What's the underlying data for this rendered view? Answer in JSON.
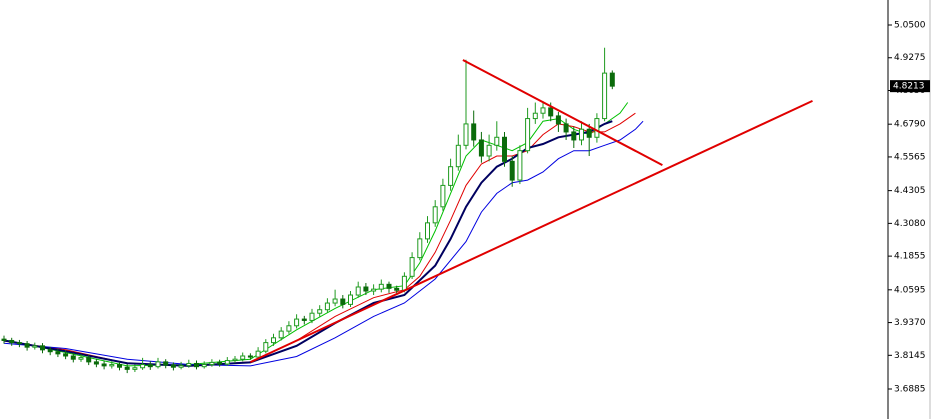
{
  "chart_data": {
    "type": "candlestick",
    "up_color": "#1f9a1f",
    "down_color": "#0b6b0b",
    "open": [
      3.875,
      3.87,
      3.862,
      3.858,
      3.845,
      3.85,
      3.835,
      3.828,
      3.82,
      3.812,
      3.8,
      3.806,
      3.79,
      3.782,
      3.775,
      3.78,
      3.77,
      3.762,
      3.768,
      3.78,
      3.772,
      3.79,
      3.778,
      3.77,
      3.776,
      3.784,
      3.772,
      3.78,
      3.788,
      3.782,
      3.795,
      3.8,
      3.812,
      3.808,
      3.83,
      3.862,
      3.88,
      3.905,
      3.925,
      3.95,
      3.945,
      3.972,
      3.985,
      4.01,
      4.025,
      4.005,
      4.04,
      4.07,
      4.055,
      4.062,
      4.08,
      4.065,
      4.058,
      4.11,
      4.18,
      4.25,
      4.31,
      4.37,
      4.45,
      4.52,
      4.6,
      4.68,
      4.62,
      4.56,
      4.6,
      4.63,
      4.54,
      4.47,
      4.58,
      4.7,
      4.72,
      4.74,
      4.71,
      4.68,
      4.65,
      4.62,
      4.66,
      4.63,
      4.7,
      4.87
    ],
    "high": [
      3.888,
      3.88,
      3.872,
      3.868,
      3.862,
      3.86,
      3.846,
      3.84,
      3.832,
      3.824,
      3.818,
      3.815,
      3.8,
      3.795,
      3.792,
      3.79,
      3.782,
      3.78,
      3.805,
      3.792,
      3.805,
      3.8,
      3.788,
      3.79,
      3.798,
      3.795,
      3.792,
      3.8,
      3.798,
      3.808,
      3.812,
      3.825,
      3.822,
      3.845,
      3.875,
      3.895,
      3.92,
      3.942,
      3.968,
      3.962,
      3.988,
      4.002,
      4.028,
      4.06,
      4.04,
      4.055,
      4.09,
      4.085,
      4.08,
      4.098,
      4.09,
      4.075,
      4.125,
      4.2,
      4.275,
      4.335,
      4.395,
      4.475,
      4.55,
      4.64,
      4.92,
      4.73,
      4.65,
      4.64,
      4.69,
      4.65,
      4.56,
      4.6,
      4.74,
      4.76,
      4.765,
      4.76,
      4.725,
      4.7,
      4.67,
      4.69,
      4.68,
      4.72,
      4.965,
      4.88
    ],
    "low": [
      3.858,
      3.85,
      3.845,
      3.832,
      3.836,
      3.822,
      3.815,
      3.808,
      3.8,
      3.788,
      3.79,
      3.778,
      3.77,
      3.762,
      3.765,
      3.758,
      3.748,
      3.752,
      3.76,
      3.76,
      3.765,
      3.766,
      3.758,
      3.762,
      3.768,
      3.762,
      3.765,
      3.772,
      3.772,
      3.775,
      3.786,
      3.792,
      3.798,
      3.8,
      3.822,
      3.85,
      3.87,
      3.895,
      3.915,
      3.93,
      3.935,
      3.96,
      3.975,
      3.998,
      3.99,
      3.995,
      4.03,
      4.04,
      4.04,
      4.05,
      4.048,
      4.04,
      4.05,
      4.1,
      4.17,
      4.235,
      4.295,
      4.355,
      4.43,
      4.505,
      4.585,
      4.595,
      4.535,
      4.54,
      4.58,
      4.52,
      4.445,
      4.455,
      4.57,
      4.68,
      4.7,
      4.69,
      4.65,
      4.62,
      4.59,
      4.6,
      4.56,
      4.61,
      4.69,
      4.81
    ],
    "close": [
      3.87,
      3.862,
      3.858,
      3.845,
      3.85,
      3.835,
      3.828,
      3.82,
      3.812,
      3.8,
      3.806,
      3.79,
      3.782,
      3.775,
      3.78,
      3.77,
      3.762,
      3.768,
      3.78,
      3.772,
      3.79,
      3.778,
      3.77,
      3.776,
      3.784,
      3.772,
      3.78,
      3.788,
      3.782,
      3.795,
      3.8,
      3.812,
      3.808,
      3.83,
      3.862,
      3.88,
      3.905,
      3.925,
      3.95,
      3.945,
      3.972,
      3.985,
      4.01,
      4.025,
      4.005,
      4.04,
      4.07,
      4.055,
      4.062,
      4.08,
      4.065,
      4.058,
      4.11,
      4.18,
      4.25,
      4.31,
      4.37,
      4.45,
      4.52,
      4.6,
      4.68,
      4.62,
      4.56,
      4.6,
      4.63,
      4.54,
      4.47,
      4.58,
      4.7,
      4.72,
      4.74,
      4.71,
      4.68,
      4.65,
      4.62,
      4.66,
      4.63,
      4.7,
      4.87,
      4.8213
    ],
    "overlays": [
      {
        "color": "#00c000",
        "x": [
          0,
          8,
          16,
          24,
          32,
          38,
          43,
          48,
          52,
          54,
          56,
          58,
          60,
          62,
          64,
          66,
          68,
          70,
          72,
          74,
          76,
          78,
          80,
          81
        ],
        "values": [
          3.872,
          3.825,
          3.775,
          3.78,
          3.8,
          3.91,
          3.99,
          4.06,
          4.075,
          4.16,
          4.28,
          4.42,
          4.56,
          4.62,
          4.6,
          4.58,
          4.61,
          4.69,
          4.7,
          4.66,
          4.64,
          4.68,
          4.72,
          4.76
        ]
      },
      {
        "color": "#e00000",
        "x": [
          0,
          8,
          16,
          24,
          32,
          38,
          43,
          48,
          52,
          54,
          56,
          58,
          60,
          62,
          64,
          66,
          68,
          70,
          72,
          74,
          76,
          78,
          80,
          82
        ],
        "values": [
          3.868,
          3.835,
          3.785,
          3.775,
          3.79,
          3.87,
          3.96,
          4.03,
          4.06,
          4.11,
          4.2,
          4.32,
          4.45,
          4.53,
          4.56,
          4.56,
          4.58,
          4.64,
          4.68,
          4.67,
          4.65,
          4.65,
          4.68,
          4.72
        ]
      },
      {
        "color": "#0000e0",
        "x": [
          0,
          8,
          16,
          24,
          32,
          38,
          43,
          48,
          52,
          56,
          60,
          62,
          64,
          66,
          68,
          70,
          72,
          74,
          76,
          78,
          80,
          82,
          83
        ],
        "values": [
          3.86,
          3.84,
          3.8,
          3.78,
          3.775,
          3.81,
          3.88,
          3.96,
          4.01,
          4.1,
          4.24,
          4.35,
          4.42,
          4.46,
          4.47,
          4.5,
          4.55,
          4.58,
          4.58,
          4.6,
          4.62,
          4.66,
          4.69
        ]
      },
      {
        "color": "#000060",
        "width": 2,
        "x": [
          0,
          8,
          16,
          24,
          32,
          38,
          43,
          48,
          52,
          56,
          58,
          60,
          62,
          64,
          66,
          68,
          70,
          72,
          74,
          76,
          78,
          79
        ],
        "values": [
          3.87,
          3.83,
          3.785,
          3.775,
          3.788,
          3.85,
          3.935,
          4.01,
          4.04,
          4.15,
          4.25,
          4.37,
          4.46,
          4.52,
          4.55,
          4.59,
          4.605,
          4.63,
          4.64,
          4.65,
          4.68,
          4.69
        ]
      }
    ],
    "trendlines": [
      {
        "color": "#e00000",
        "x": [
          59.6,
          85.5
        ],
        "values": [
          4.919,
          4.526
        ]
      },
      {
        "color": "#e00000",
        "x": [
          32,
          105
        ],
        "values": [
          3.789,
          4.766
        ]
      }
    ],
    "ylim": [
      3.5763,
      5.1435
    ],
    "yticks": [
      {
        "value": 3.6885,
        "label": "3.6885"
      },
      {
        "value": 3.8145,
        "label": "3.8145"
      },
      {
        "value": 3.937,
        "label": "3.9370"
      },
      {
        "value": 4.0595,
        "label": "4.0595"
      },
      {
        "value": 4.1855,
        "label": "4.1855"
      },
      {
        "value": 4.308,
        "label": "4.3080"
      },
      {
        "value": 4.4305,
        "label": "4.4305"
      },
      {
        "value": 4.5565,
        "label": "4.5565"
      },
      {
        "value": 4.679,
        "label": "4.6790"
      },
      {
        "value": 4.805,
        "label": "4.8050"
      },
      {
        "value": 4.9275,
        "label": "4.9275"
      },
      {
        "value": 5.05,
        "label": "5.0500"
      }
    ],
    "last_price": {
      "value": 4.8213,
      "label": "4.8213"
    }
  }
}
